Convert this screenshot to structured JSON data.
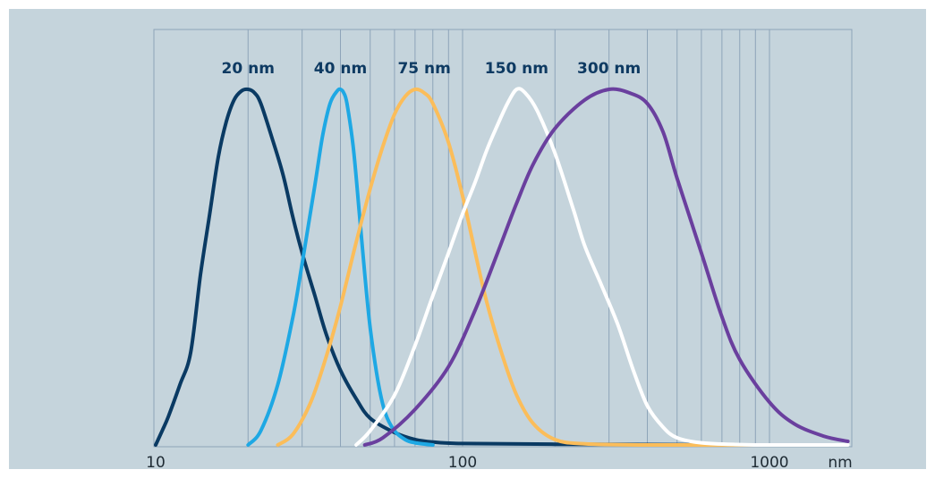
{
  "chart_data": {
    "type": "line",
    "x_scale": "log",
    "xlim": [
      10,
      2000
    ],
    "ylim": [
      0,
      1
    ],
    "grid": "vertical",
    "xlabel": "",
    "ylabel": "",
    "x_ticks": [
      {
        "value": 10,
        "label": "10"
      },
      {
        "value": 100,
        "label": "100"
      },
      {
        "value": 1000,
        "label": "1000"
      }
    ],
    "x_unit": "nm",
    "series": [
      {
        "name": "20 nm",
        "color": "#0a3a63",
        "points": [
          [
            10,
            0.0
          ],
          [
            10.5,
            0.04
          ],
          [
            11,
            0.08
          ],
          [
            12,
            0.17
          ],
          [
            13,
            0.26
          ],
          [
            14,
            0.48
          ],
          [
            15,
            0.65
          ],
          [
            16,
            0.81
          ],
          [
            17,
            0.91
          ],
          [
            18,
            0.97
          ],
          [
            19,
            0.995
          ],
          [
            20,
            1.0
          ],
          [
            21,
            0.99
          ],
          [
            22,
            0.96
          ],
          [
            24,
            0.86
          ],
          [
            26,
            0.76
          ],
          [
            28,
            0.64
          ],
          [
            30,
            0.54
          ],
          [
            33,
            0.42
          ],
          [
            36,
            0.31
          ],
          [
            40,
            0.21
          ],
          [
            45,
            0.13
          ],
          [
            50,
            0.075
          ],
          [
            60,
            0.035
          ],
          [
            70,
            0.015
          ],
          [
            80,
            0.008
          ],
          [
            100,
            0.004
          ],
          [
            200,
            0.002
          ],
          [
            500,
            0.001
          ],
          [
            700,
            0.0
          ]
        ]
      },
      {
        "name": "40 nm",
        "color": "#1ea8e4",
        "points": [
          [
            20,
            0.0
          ],
          [
            22,
            0.04
          ],
          [
            25,
            0.17
          ],
          [
            28,
            0.36
          ],
          [
            30,
            0.51
          ],
          [
            33,
            0.73
          ],
          [
            35,
            0.87
          ],
          [
            37,
            0.96
          ],
          [
            39,
            0.995
          ],
          [
            40,
            1.0
          ],
          [
            41,
            0.99
          ],
          [
            42,
            0.96
          ],
          [
            44,
            0.84
          ],
          [
            46,
            0.66
          ],
          [
            48,
            0.48
          ],
          [
            50,
            0.33
          ],
          [
            53,
            0.18
          ],
          [
            56,
            0.09
          ],
          [
            60,
            0.04
          ],
          [
            65,
            0.015
          ],
          [
            70,
            0.006
          ],
          [
            80,
            0.0
          ]
        ]
      },
      {
        "name": "75 nm",
        "color": "#fbbd5a",
        "points": [
          [
            25,
            0.0
          ],
          [
            28,
            0.03
          ],
          [
            32,
            0.12
          ],
          [
            36,
            0.25
          ],
          [
            40,
            0.39
          ],
          [
            45,
            0.57
          ],
          [
            50,
            0.72
          ],
          [
            55,
            0.84
          ],
          [
            60,
            0.93
          ],
          [
            65,
            0.98
          ],
          [
            70,
            1.0
          ],
          [
            75,
            0.99
          ],
          [
            80,
            0.96
          ],
          [
            90,
            0.85
          ],
          [
            100,
            0.7
          ],
          [
            110,
            0.54
          ],
          [
            120,
            0.4
          ],
          [
            135,
            0.25
          ],
          [
            150,
            0.14
          ],
          [
            170,
            0.06
          ],
          [
            200,
            0.015
          ],
          [
            250,
            0.003
          ],
          [
            400,
            0.0
          ],
          [
            1000,
            0.0
          ]
        ]
      },
      {
        "name": "150 nm",
        "color": "#ffffff",
        "points": [
          [
            45,
            0.0
          ],
          [
            50,
            0.04
          ],
          [
            60,
            0.14
          ],
          [
            70,
            0.28
          ],
          [
            80,
            0.42
          ],
          [
            90,
            0.54
          ],
          [
            100,
            0.65
          ],
          [
            110,
            0.74
          ],
          [
            120,
            0.83
          ],
          [
            130,
            0.9
          ],
          [
            140,
            0.96
          ],
          [
            150,
            1.0
          ],
          [
            160,
            0.99
          ],
          [
            175,
            0.94
          ],
          [
            200,
            0.82
          ],
          [
            230,
            0.66
          ],
          [
            250,
            0.56
          ],
          [
            280,
            0.46
          ],
          [
            320,
            0.34
          ],
          [
            360,
            0.21
          ],
          [
            400,
            0.11
          ],
          [
            450,
            0.05
          ],
          [
            500,
            0.02
          ],
          [
            600,
            0.006
          ],
          [
            800,
            0.001
          ],
          [
            1000,
            0.0
          ],
          [
            1800,
            0.0
          ]
        ]
      },
      {
        "name": "300 nm",
        "color": "#6a3f9e",
        "points": [
          [
            48,
            0.0
          ],
          [
            55,
            0.02
          ],
          [
            70,
            0.1
          ],
          [
            90,
            0.22
          ],
          [
            110,
            0.38
          ],
          [
            130,
            0.54
          ],
          [
            150,
            0.68
          ],
          [
            170,
            0.79
          ],
          [
            200,
            0.89
          ],
          [
            250,
            0.97
          ],
          [
            300,
            1.0
          ],
          [
            350,
            0.99
          ],
          [
            400,
            0.96
          ],
          [
            450,
            0.88
          ],
          [
            500,
            0.75
          ],
          [
            600,
            0.54
          ],
          [
            700,
            0.36
          ],
          [
            800,
            0.24
          ],
          [
            1000,
            0.12
          ],
          [
            1200,
            0.06
          ],
          [
            1500,
            0.025
          ],
          [
            1800,
            0.01
          ]
        ]
      }
    ],
    "annotations": [
      {
        "text": "20 nm",
        "x": 20
      },
      {
        "text": "40 nm",
        "x": 40
      },
      {
        "text": "75 nm",
        "x": 75
      },
      {
        "text": "150 nm",
        "x": 150
      },
      {
        "text": "300 nm",
        "x": 300
      }
    ]
  }
}
